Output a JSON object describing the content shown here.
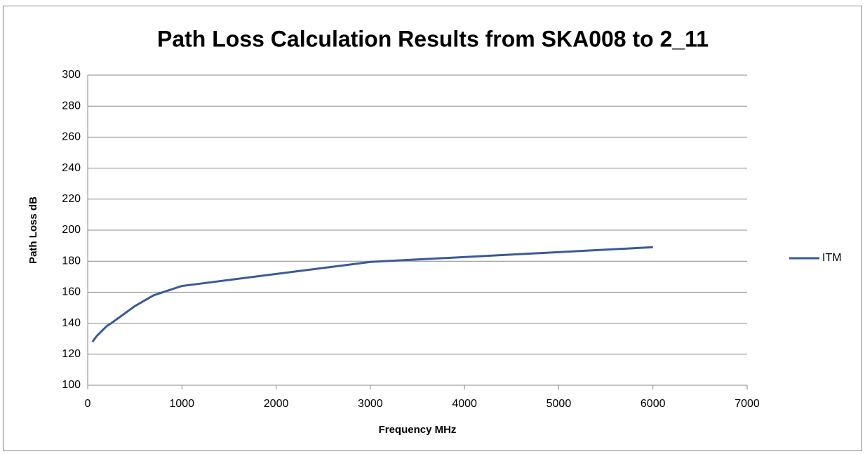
{
  "chart_data": {
    "type": "line",
    "title": "Path Loss Calculation Results from  SKA008 to  2_11",
    "xlabel": "Frequency MHz",
    "ylabel": "Path Loss dB",
    "x": [
      50,
      100,
      200,
      250,
      500,
      700,
      1000,
      3000,
      6000
    ],
    "series": [
      {
        "name": "ITM",
        "color": "#3a5a98",
        "values": [
          128,
          132,
          138,
          140,
          151,
          158,
          164,
          179.5,
          189
        ]
      }
    ],
    "xlim": [
      0,
      7000
    ],
    "xticks": [
      0,
      1000,
      2000,
      3000,
      4000,
      5000,
      6000,
      7000
    ],
    "ylim": [
      100,
      300
    ],
    "yticks": [
      100,
      120,
      140,
      160,
      180,
      200,
      220,
      240,
      260,
      280,
      300
    ],
    "grid": true,
    "legend": "right"
  }
}
